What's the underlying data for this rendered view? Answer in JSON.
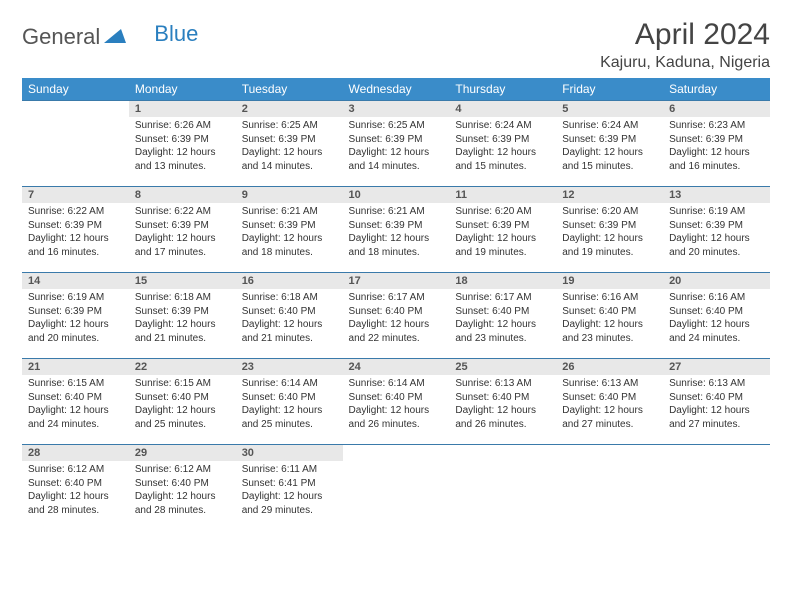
{
  "brand": {
    "part1": "General",
    "part2": "Blue"
  },
  "title": "April 2024",
  "location": "Kajuru, Kaduna, Nigeria",
  "dayHeaders": [
    "Sunday",
    "Monday",
    "Tuesday",
    "Wednesday",
    "Thursday",
    "Friday",
    "Saturday"
  ],
  "colors": {
    "header_bg": "#3a8cc9",
    "cell_rule": "#3a7aaa",
    "daynum_bg": "#e8e8e8",
    "brand_blue": "#2a7fbf",
    "text": "#333333"
  },
  "layout": {
    "cols": 7,
    "rows": 5,
    "first_weekday_offset": 1
  },
  "days": [
    {
      "n": 1,
      "sunrise": "6:26 AM",
      "sunset": "6:39 PM",
      "daylight": "12 hours and 13 minutes."
    },
    {
      "n": 2,
      "sunrise": "6:25 AM",
      "sunset": "6:39 PM",
      "daylight": "12 hours and 14 minutes."
    },
    {
      "n": 3,
      "sunrise": "6:25 AM",
      "sunset": "6:39 PM",
      "daylight": "12 hours and 14 minutes."
    },
    {
      "n": 4,
      "sunrise": "6:24 AM",
      "sunset": "6:39 PM",
      "daylight": "12 hours and 15 minutes."
    },
    {
      "n": 5,
      "sunrise": "6:24 AM",
      "sunset": "6:39 PM",
      "daylight": "12 hours and 15 minutes."
    },
    {
      "n": 6,
      "sunrise": "6:23 AM",
      "sunset": "6:39 PM",
      "daylight": "12 hours and 16 minutes."
    },
    {
      "n": 7,
      "sunrise": "6:22 AM",
      "sunset": "6:39 PM",
      "daylight": "12 hours and 16 minutes."
    },
    {
      "n": 8,
      "sunrise": "6:22 AM",
      "sunset": "6:39 PM",
      "daylight": "12 hours and 17 minutes."
    },
    {
      "n": 9,
      "sunrise": "6:21 AM",
      "sunset": "6:39 PM",
      "daylight": "12 hours and 18 minutes."
    },
    {
      "n": 10,
      "sunrise": "6:21 AM",
      "sunset": "6:39 PM",
      "daylight": "12 hours and 18 minutes."
    },
    {
      "n": 11,
      "sunrise": "6:20 AM",
      "sunset": "6:39 PM",
      "daylight": "12 hours and 19 minutes."
    },
    {
      "n": 12,
      "sunrise": "6:20 AM",
      "sunset": "6:39 PM",
      "daylight": "12 hours and 19 minutes."
    },
    {
      "n": 13,
      "sunrise": "6:19 AM",
      "sunset": "6:39 PM",
      "daylight": "12 hours and 20 minutes."
    },
    {
      "n": 14,
      "sunrise": "6:19 AM",
      "sunset": "6:39 PM",
      "daylight": "12 hours and 20 minutes."
    },
    {
      "n": 15,
      "sunrise": "6:18 AM",
      "sunset": "6:39 PM",
      "daylight": "12 hours and 21 minutes."
    },
    {
      "n": 16,
      "sunrise": "6:18 AM",
      "sunset": "6:40 PM",
      "daylight": "12 hours and 21 minutes."
    },
    {
      "n": 17,
      "sunrise": "6:17 AM",
      "sunset": "6:40 PM",
      "daylight": "12 hours and 22 minutes."
    },
    {
      "n": 18,
      "sunrise": "6:17 AM",
      "sunset": "6:40 PM",
      "daylight": "12 hours and 23 minutes."
    },
    {
      "n": 19,
      "sunrise": "6:16 AM",
      "sunset": "6:40 PM",
      "daylight": "12 hours and 23 minutes."
    },
    {
      "n": 20,
      "sunrise": "6:16 AM",
      "sunset": "6:40 PM",
      "daylight": "12 hours and 24 minutes."
    },
    {
      "n": 21,
      "sunrise": "6:15 AM",
      "sunset": "6:40 PM",
      "daylight": "12 hours and 24 minutes."
    },
    {
      "n": 22,
      "sunrise": "6:15 AM",
      "sunset": "6:40 PM",
      "daylight": "12 hours and 25 minutes."
    },
    {
      "n": 23,
      "sunrise": "6:14 AM",
      "sunset": "6:40 PM",
      "daylight": "12 hours and 25 minutes."
    },
    {
      "n": 24,
      "sunrise": "6:14 AM",
      "sunset": "6:40 PM",
      "daylight": "12 hours and 26 minutes."
    },
    {
      "n": 25,
      "sunrise": "6:13 AM",
      "sunset": "6:40 PM",
      "daylight": "12 hours and 26 minutes."
    },
    {
      "n": 26,
      "sunrise": "6:13 AM",
      "sunset": "6:40 PM",
      "daylight": "12 hours and 27 minutes."
    },
    {
      "n": 27,
      "sunrise": "6:13 AM",
      "sunset": "6:40 PM",
      "daylight": "12 hours and 27 minutes."
    },
    {
      "n": 28,
      "sunrise": "6:12 AM",
      "sunset": "6:40 PM",
      "daylight": "12 hours and 28 minutes."
    },
    {
      "n": 29,
      "sunrise": "6:12 AM",
      "sunset": "6:40 PM",
      "daylight": "12 hours and 28 minutes."
    },
    {
      "n": 30,
      "sunrise": "6:11 AM",
      "sunset": "6:41 PM",
      "daylight": "12 hours and 29 minutes."
    }
  ],
  "labels": {
    "sunrise": "Sunrise:",
    "sunset": "Sunset:",
    "daylight": "Daylight:"
  }
}
